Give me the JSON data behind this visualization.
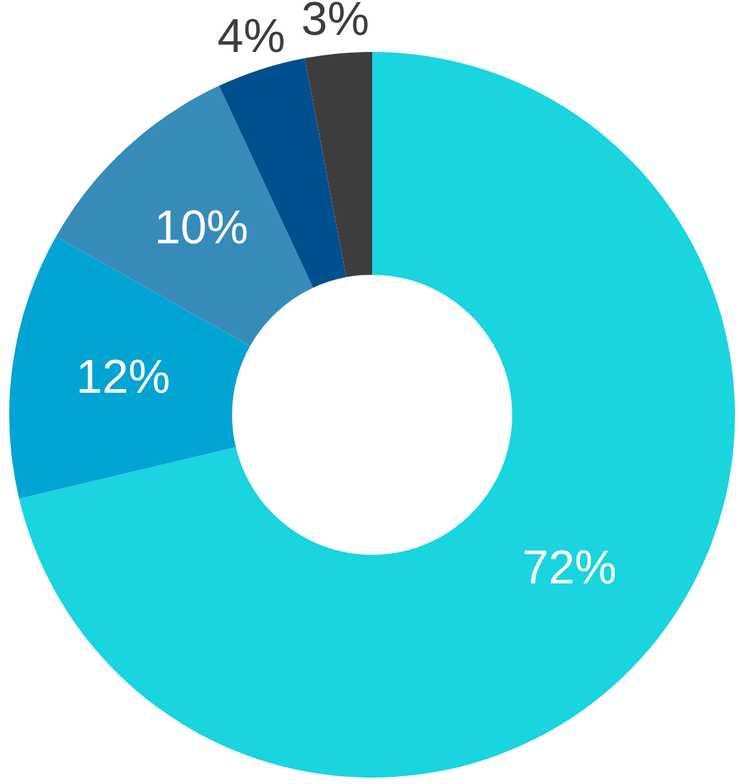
{
  "chart_data": {
    "type": "donut",
    "categories": [
      null,
      null,
      null,
      null,
      null
    ],
    "values": [
      72,
      12,
      10,
      4,
      3
    ],
    "colors": [
      "#1ad4e0",
      "#02a4d3",
      "#378bb8",
      "#004f8f",
      "#3d3d3d"
    ],
    "value_labels": [
      "72%",
      "12%",
      "10%",
      "4%",
      "3%"
    ],
    "legend": false
  }
}
